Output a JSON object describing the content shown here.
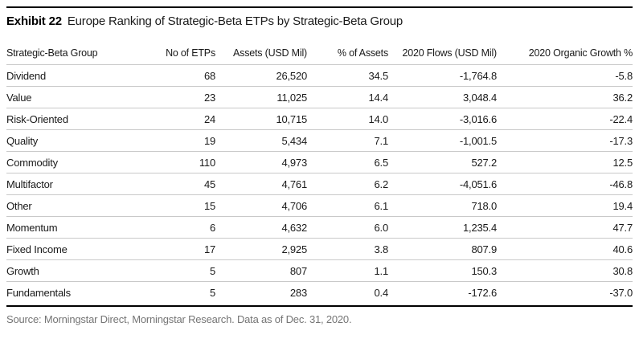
{
  "exhibit": {
    "label": "Exhibit 22",
    "title": "Europe Ranking of Strategic-Beta ETPs by Strategic-Beta Group"
  },
  "chart_data": {
    "type": "table",
    "title": "Europe Ranking of Strategic-Beta ETPs by Strategic-Beta Group",
    "columns": [
      "Strategic-Beta Group",
      "No of ETPs",
      "Assets (USD Mil)",
      "% of Assets",
      "2020 Flows (USD Mil)",
      "2020 Organic Growth %"
    ],
    "rows": [
      [
        "Dividend",
        "68",
        "26,520",
        "34.5",
        "-1,764.8",
        "-5.8"
      ],
      [
        "Value",
        "23",
        "11,025",
        "14.4",
        "3,048.4",
        "36.2"
      ],
      [
        "Risk-Oriented",
        "24",
        "10,715",
        "14.0",
        "-3,016.6",
        "-22.4"
      ],
      [
        "Quality",
        "19",
        "5,434",
        "7.1",
        "-1,001.5",
        "-17.3"
      ],
      [
        "Commodity",
        "110",
        "4,973",
        "6.5",
        "527.2",
        "12.5"
      ],
      [
        "Multifactor",
        "45",
        "4,761",
        "6.2",
        "-4,051.6",
        "-46.8"
      ],
      [
        "Other",
        "15",
        "4,706",
        "6.1",
        "718.0",
        "19.4"
      ],
      [
        "Momentum",
        "6",
        "4,632",
        "6.0",
        "1,235.4",
        "47.7"
      ],
      [
        "Fixed Income",
        "17",
        "2,925",
        "3.8",
        "807.9",
        "40.6"
      ],
      [
        "Growth",
        "5",
        "807",
        "1.1",
        "150.3",
        "30.8"
      ],
      [
        "Fundamentals",
        "5",
        "283",
        "0.4",
        "-172.6",
        "-37.0"
      ]
    ]
  },
  "footer": {
    "source": "Source: Morningstar Direct, Morningstar Research. Data as of Dec. 31, 2020."
  },
  "colors": {
    "rule": "#000000",
    "row_divider": "#c9c9c9",
    "text": "#1a1a1a",
    "source_text": "#757575",
    "background": "#ffffff"
  }
}
